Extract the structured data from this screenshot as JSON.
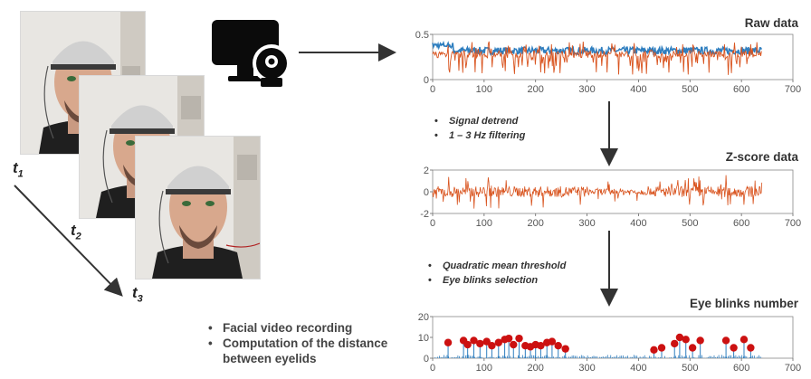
{
  "frames": [
    {
      "label": "t",
      "sub": "1"
    },
    {
      "label": "t",
      "sub": "2"
    },
    {
      "label": "t",
      "sub": "3"
    }
  ],
  "video_bullets": [
    "Facial video recording",
    "Computation of the distance between eyelids"
  ],
  "processing_steps_1": [
    "Signal detrend",
    "1 – 3 Hz filtering"
  ],
  "processing_steps_2": [
    "Quadratic mean threshold",
    "Eye blinks selection"
  ],
  "icon": "computer-webcam-icon",
  "colors": {
    "orange": "#d9541f",
    "blue": "#2e7ebf",
    "red": "#cc1111"
  },
  "chart_data": [
    {
      "type": "line",
      "title": "Raw data",
      "x_ticks": [
        0,
        100,
        200,
        300,
        400,
        500,
        600,
        700
      ],
      "y_ticks": [
        "0",
        "0.5"
      ],
      "xlim": [
        0,
        700
      ],
      "ylim": [
        0,
        0.5
      ],
      "series": [
        {
          "color": "#2e7ebf",
          "x_range": [
            0,
            640
          ],
          "approx_level": 0.32
        },
        {
          "color": "#d9541f",
          "x_range": [
            0,
            640
          ],
          "approx_level": 0.28
        }
      ]
    },
    {
      "type": "line",
      "title": "Z-score data",
      "x_ticks": [
        0,
        100,
        200,
        300,
        400,
        500,
        600,
        700
      ],
      "y_ticks": [
        "2",
        "0",
        "-2"
      ],
      "xlim": [
        0,
        700
      ],
      "ylim": [
        -2,
        2
      ],
      "series": [
        {
          "color": "#d9541f",
          "x_range": [
            0,
            640
          ],
          "approx_level": 0
        }
      ]
    },
    {
      "type": "scatter",
      "title": "Eye blinks number",
      "x_ticks": [
        0,
        100,
        200,
        300,
        400,
        500,
        600,
        700
      ],
      "y_ticks": [
        "20",
        "10",
        "0"
      ],
      "xlim": [
        0,
        700
      ],
      "ylim": [
        0,
        20
      ],
      "points": [
        {
          "x": 30,
          "y": 7.5
        },
        {
          "x": 60,
          "y": 8.5
        },
        {
          "x": 68,
          "y": 6.5
        },
        {
          "x": 80,
          "y": 8.5
        },
        {
          "x": 92,
          "y": 7
        },
        {
          "x": 105,
          "y": 8
        },
        {
          "x": 115,
          "y": 6
        },
        {
          "x": 128,
          "y": 7.5
        },
        {
          "x": 140,
          "y": 9
        },
        {
          "x": 148,
          "y": 9.5
        },
        {
          "x": 157,
          "y": 6.5
        },
        {
          "x": 168,
          "y": 9.5
        },
        {
          "x": 180,
          "y": 6
        },
        {
          "x": 190,
          "y": 5.5
        },
        {
          "x": 200,
          "y": 6.5
        },
        {
          "x": 210,
          "y": 6
        },
        {
          "x": 222,
          "y": 7.5
        },
        {
          "x": 232,
          "y": 8
        },
        {
          "x": 244,
          "y": 6
        },
        {
          "x": 258,
          "y": 4.5
        },
        {
          "x": 430,
          "y": 4
        },
        {
          "x": 445,
          "y": 5
        },
        {
          "x": 470,
          "y": 7
        },
        {
          "x": 480,
          "y": 10
        },
        {
          "x": 492,
          "y": 9
        },
        {
          "x": 505,
          "y": 5
        },
        {
          "x": 520,
          "y": 8.5
        },
        {
          "x": 570,
          "y": 8.5
        },
        {
          "x": 585,
          "y": 5
        },
        {
          "x": 605,
          "y": 9
        },
        {
          "x": 618,
          "y": 5
        }
      ]
    }
  ]
}
